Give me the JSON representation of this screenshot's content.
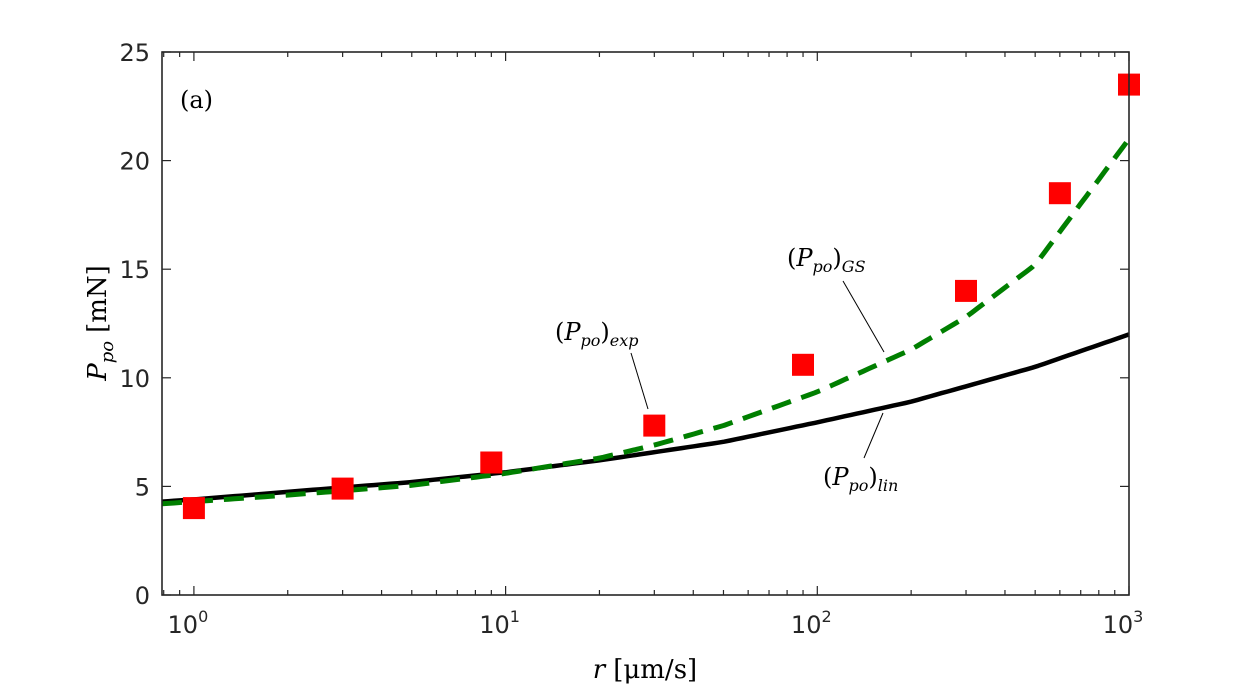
{
  "chart_data": {
    "type": "scatter",
    "panel_label": "(a)",
    "xscale": "log",
    "xlim": [
      0.79,
      1000
    ],
    "ylim": [
      0,
      25
    ],
    "xlabel": {
      "var": "r",
      "unit": "[μm/s]"
    },
    "ylabel": {
      "var": "P",
      "sub": "po",
      "unit": "[mN]"
    },
    "x_ticks": [
      {
        "value": 1,
        "base": "10",
        "exp": "0"
      },
      {
        "value": 10,
        "base": "10",
        "exp": "1"
      },
      {
        "value": 100,
        "base": "10",
        "exp": "2"
      },
      {
        "value": 1000,
        "base": "10",
        "exp": "3"
      }
    ],
    "y_ticks": [
      {
        "value": 0,
        "label": "0"
      },
      {
        "value": 5,
        "label": "5"
      },
      {
        "value": 10,
        "label": "10"
      },
      {
        "value": 15,
        "label": "15"
      },
      {
        "value": 20,
        "label": "20"
      },
      {
        "value": 25,
        "label": "25"
      }
    ],
    "series": [
      {
        "name": "exp",
        "kind": "markers",
        "color": "#ff0000",
        "x": [
          1,
          3,
          9,
          30,
          90,
          300,
          600,
          1000
        ],
        "y": [
          4.0,
          4.9,
          6.1,
          7.8,
          10.6,
          14.0,
          18.5,
          23.5
        ]
      },
      {
        "name": "lin",
        "kind": "solid",
        "color": "#000000",
        "x": [
          0.79,
          1,
          2,
          5,
          10,
          20,
          50,
          100,
          200,
          500,
          1000
        ],
        "y": [
          4.3,
          4.4,
          4.75,
          5.2,
          5.65,
          6.2,
          7.05,
          7.95,
          8.9,
          10.5,
          12.0
        ]
      },
      {
        "name": "GS",
        "kind": "dashed",
        "color": "#007f00",
        "x": [
          0.79,
          1,
          2,
          5,
          10,
          20,
          30,
          50,
          100,
          200,
          300,
          500,
          1000
        ],
        "y": [
          4.2,
          4.3,
          4.6,
          5.05,
          5.6,
          6.3,
          6.9,
          7.8,
          9.35,
          11.3,
          12.8,
          15.2,
          21.0
        ]
      }
    ],
    "annotations": [
      {
        "id": "exp",
        "P": "P",
        "sub": "po",
        "tail": "exp"
      },
      {
        "id": "GS",
        "P": "P",
        "sub": "po",
        "tail": "GS"
      },
      {
        "id": "lin",
        "P": "P",
        "sub": "po",
        "tail": "lin"
      }
    ]
  }
}
